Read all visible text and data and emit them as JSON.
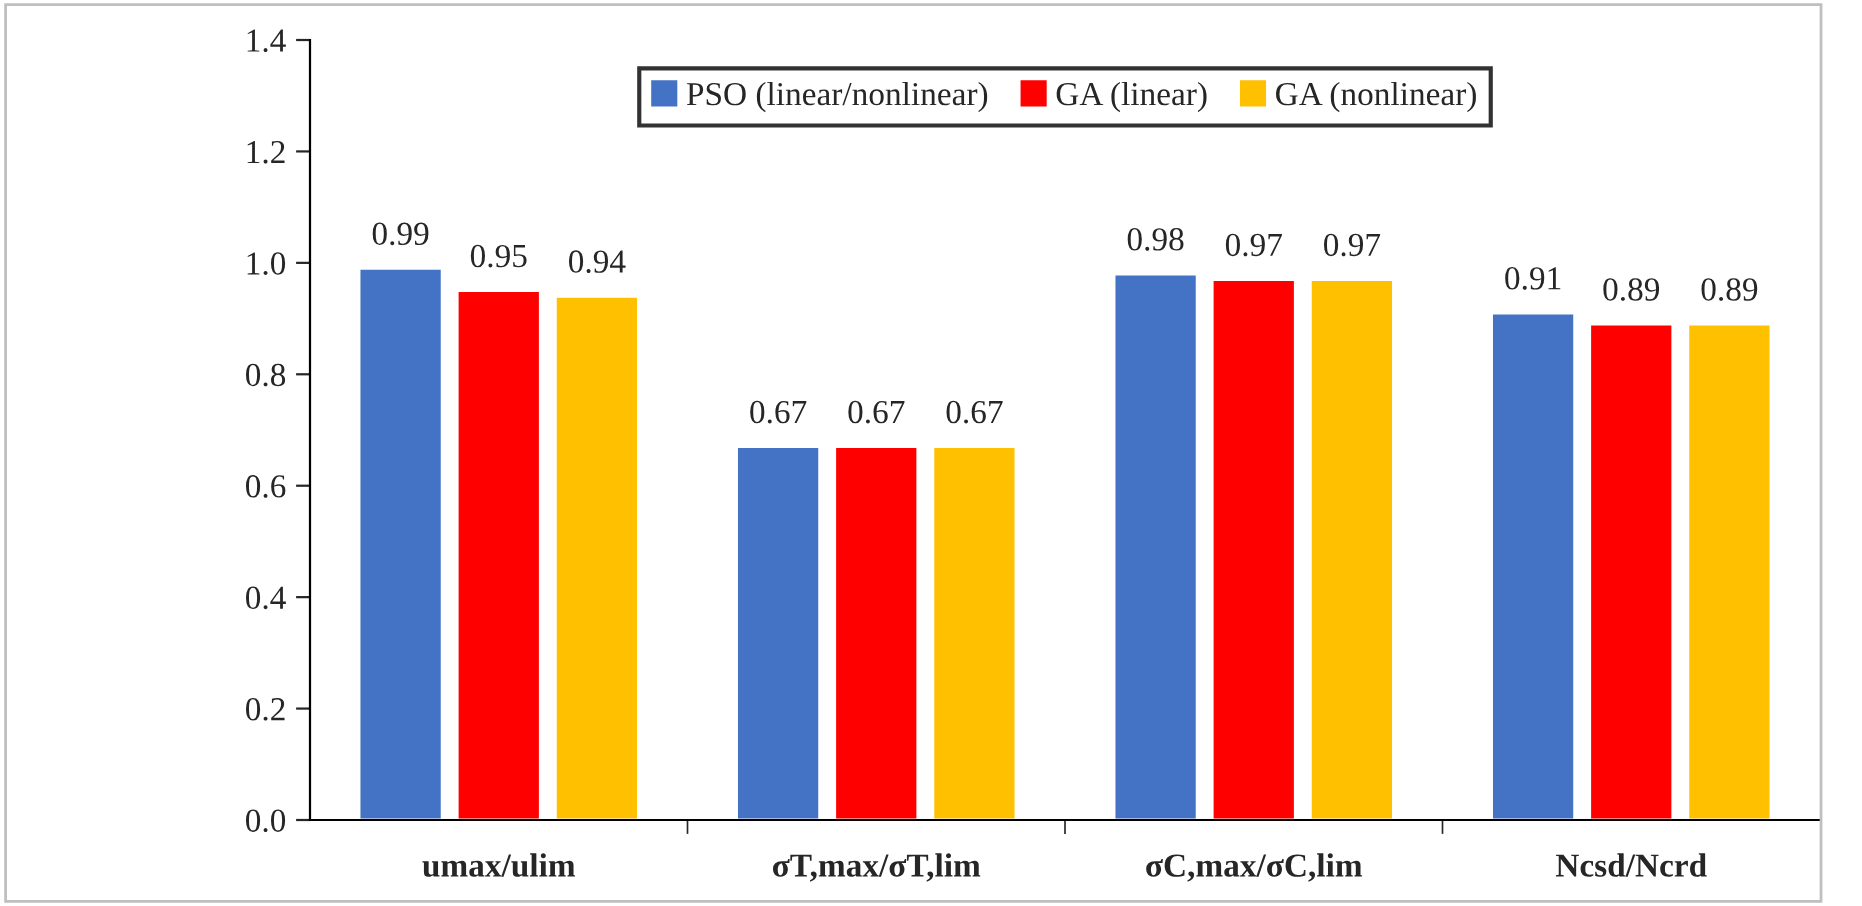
{
  "chart_data": {
    "type": "bar",
    "categories": [
      "umax/ulim",
      "σT,max/σT,lim",
      "σC,max/σC,lim",
      "Ncsd/Ncrd"
    ],
    "series": [
      {
        "name": "PSO (linear/nonlinear)",
        "color": "#4472c4",
        "values": [
          0.99,
          0.67,
          0.98,
          0.91
        ]
      },
      {
        "name": "GA (linear)",
        "color": "#ff0000",
        "values": [
          0.95,
          0.67,
          0.97,
          0.89
        ]
      },
      {
        "name": "GA (nonlinear)",
        "color": "#ffc000",
        "values": [
          0.94,
          0.67,
          0.97,
          0.89
        ]
      }
    ],
    "ylim": [
      0,
      1.4
    ],
    "yticks": [
      {
        "value": 0,
        "label": "0.0"
      },
      {
        "value": 0.2,
        "label": "0.2"
      },
      {
        "value": 0.4,
        "label": "0.4"
      },
      {
        "value": 0.6,
        "label": "0.6"
      },
      {
        "value": 0.8,
        "label": "0.8"
      },
      {
        "value": 1.0,
        "label": "1.0"
      },
      {
        "value": 1.2,
        "label": "1.2"
      },
      {
        "value": 1.4,
        "label": "1.4"
      }
    ],
    "data_labels": true,
    "grid": false,
    "legend": "top"
  }
}
